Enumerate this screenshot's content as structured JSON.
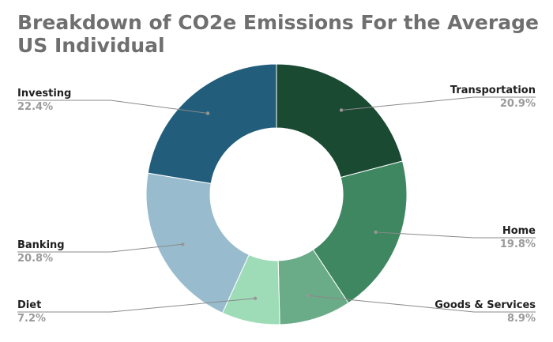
{
  "chart_data": {
    "type": "pie",
    "title": "Breakdown of CO2e Emissions For the Average US Individual",
    "donut": true,
    "slices": [
      {
        "label": "Transportation",
        "value": 20.9,
        "value_label": "20.9%",
        "color": "#1b4a33"
      },
      {
        "label": "Home",
        "value": 19.8,
        "value_label": "19.8%",
        "color": "#3f8760"
      },
      {
        "label": "Goods & Services",
        "value": 8.9,
        "value_label": "8.9%",
        "color": "#6aab88"
      },
      {
        "label": "Diet",
        "value": 7.2,
        "value_label": "7.2%",
        "color": "#9edcb8"
      },
      {
        "label": "Banking",
        "value": 20.8,
        "value_label": "20.8%",
        "color": "#98bcce"
      },
      {
        "label": "Investing",
        "value": 22.4,
        "value_label": "22.4%",
        "color": "#225e7c"
      }
    ],
    "start_angle_deg": 0,
    "direction": "clockwise",
    "legend": "none"
  }
}
